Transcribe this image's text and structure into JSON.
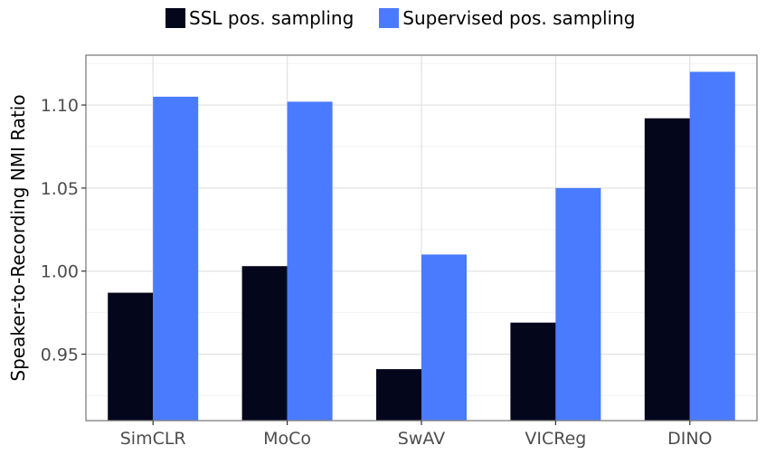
{
  "chart_data": {
    "type": "bar",
    "title": "",
    "xlabel": "",
    "ylabel": "Speaker-to-Recording NMI Ratio",
    "categories": [
      "SimCLR",
      "MoCo",
      "SwAV",
      "VICReg",
      "DINO"
    ],
    "series": [
      {
        "name": "SSL pos. sampling",
        "color": "#04061c",
        "values": [
          0.987,
          1.003,
          0.941,
          0.969,
          1.092
        ]
      },
      {
        "name": "Supervised pos. sampling",
        "color": "#4a7bff",
        "values": [
          1.105,
          1.102,
          1.01,
          1.05,
          1.12
        ]
      }
    ],
    "ylim": [
      0.91,
      1.13
    ],
    "yticks": [
      0.95,
      1.0,
      1.05,
      1.1
    ],
    "ytick_labels": [
      "0.95",
      "1.00",
      "1.05",
      "1.10"
    ],
    "legend_position": "top",
    "grid": true
  }
}
